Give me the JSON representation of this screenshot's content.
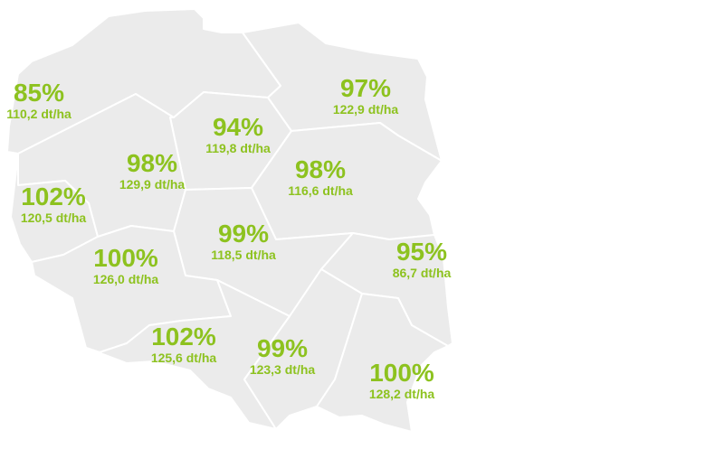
{
  "map": {
    "regions": [
      {
        "id": "r1",
        "percent": "85%",
        "yield": "110,2 dt/ha"
      },
      {
        "id": "r2",
        "percent": "97%",
        "yield": "122,9 dt/ha"
      },
      {
        "id": "r3",
        "percent": "94%",
        "yield": "119,8 dt/ha"
      },
      {
        "id": "r4",
        "percent": "98%",
        "yield": "129,9 dt/ha"
      },
      {
        "id": "r5",
        "percent": "98%",
        "yield": "116,6 dt/ha"
      },
      {
        "id": "r6",
        "percent": "102%",
        "yield": "120,5 dt/ha"
      },
      {
        "id": "r7",
        "percent": "99%",
        "yield": "118,5 dt/ha"
      },
      {
        "id": "r8",
        "percent": "95%",
        "yield": "86,7 dt/ha"
      },
      {
        "id": "r9",
        "percent": "100%",
        "yield": "126,0 dt/ha"
      },
      {
        "id": "r10",
        "percent": "102%",
        "yield": "125,6 dt/ha"
      },
      {
        "id": "r11",
        "percent": "99%",
        "yield": "123,3 dt/ha"
      },
      {
        "id": "r12",
        "percent": "100%",
        "yield": "128,2 dt/ha"
      }
    ]
  },
  "colors": {
    "label": "#8dc21f",
    "region_fill": "#ebebeb",
    "region_border": "#ffffff"
  }
}
